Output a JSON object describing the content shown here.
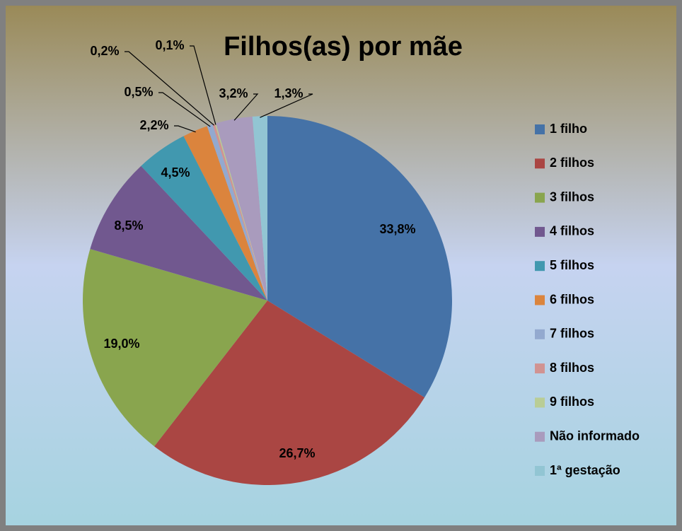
{
  "chart_data": {
    "type": "pie",
    "title": "Filhos(as) por mãe",
    "categories": [
      "1 filho",
      "2 filhos",
      "3 filhos",
      "4 filhos",
      "5 filhos",
      "6 filhos",
      "7 filhos",
      "8 filhos",
      "9 filhos",
      "Não informado",
      "1ª gestação"
    ],
    "values": [
      33.8,
      26.7,
      19.0,
      8.5,
      4.5,
      2.2,
      0.5,
      0.2,
      0.1,
      3.2,
      1.3
    ],
    "value_labels": [
      "33,8%",
      "26,7%",
      "19,0%",
      "8,5%",
      "4,5%",
      "2,2%",
      "0,5%",
      "0,2%",
      "0,1%",
      "3,2%",
      "1,3%"
    ],
    "colors": [
      "#4572a7",
      "#aa4643",
      "#89a54e",
      "#71588f",
      "#4198af",
      "#db843d",
      "#93a9cf",
      "#d19392",
      "#b9cd96",
      "#a99bbd",
      "#92c5d3"
    ],
    "legend": "right"
  }
}
